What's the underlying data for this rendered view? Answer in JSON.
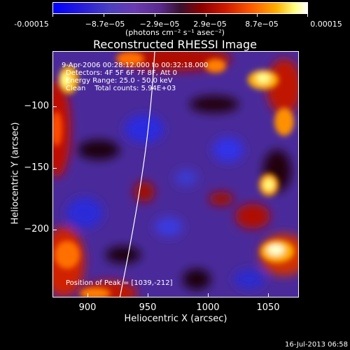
{
  "colorbar": {
    "ticks": [
      "-0.00015",
      "−8.7e−05",
      "−2.9e−05",
      "2.9e−05",
      "8.7e−05",
      "0.00015"
    ],
    "units": "(photons cm⁻² s⁻¹ asec⁻²)"
  },
  "title": "Reconstructed RHESSI Image",
  "annotations": {
    "line1": "9-Apr-2006 00:28:12.000 to 00:32:18.000",
    "line2": "Detectors: 4F 5F 6F 7F 8F, Att 0",
    "line3": "Energy Range: 25.0 - 50.0 keV",
    "line4": "Clean    Total counts: 5.94E+03",
    "peak": "Position of Peak = [1039,-212]"
  },
  "axes": {
    "xlabel": "Heliocentric X (arcsec)",
    "ylabel": "Heliocentric Y (arcsec)",
    "xticks": [
      "900",
      "950",
      "1000",
      "1050"
    ],
    "yticks": [
      "−100",
      "−150",
      "−200"
    ]
  },
  "timestamp": "16-Jul-2013 06:58"
}
